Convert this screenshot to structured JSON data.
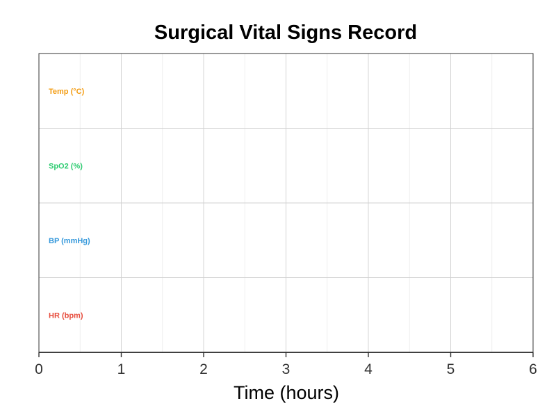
{
  "chart_data": {
    "type": "line",
    "title": "Surgical Vital Signs Record",
    "xlabel": "Time (hours)",
    "ylabel": "",
    "xlim": [
      0,
      6
    ],
    "x_ticks": [
      0,
      1,
      2,
      3,
      4,
      5,
      6
    ],
    "x_minor_ticks": [
      0.5,
      1.5,
      2.5,
      3.5,
      4.5,
      5.5
    ],
    "grid": true,
    "rows": [
      {
        "label": "Temp (°C)",
        "color": "#f39c12"
      },
      {
        "label": "SpO2 (%)",
        "color": "#2ecc71"
      },
      {
        "label": "BP (mmHg)",
        "color": "#3498db"
      },
      {
        "label": "HR (bpm)",
        "color": "#e74c3c"
      }
    ],
    "series": []
  }
}
